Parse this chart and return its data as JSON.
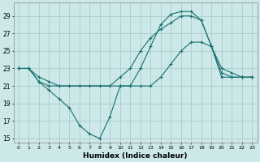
{
  "xlabel": "Humidex (Indice chaleur)",
  "bg_color": "#cce8e8",
  "grid_color": "#aacccc",
  "line_color": "#1a7070",
  "xlim": [
    -0.5,
    23.5
  ],
  "ylim": [
    14.5,
    30.5
  ],
  "xticks": [
    0,
    1,
    2,
    3,
    4,
    5,
    6,
    7,
    8,
    9,
    10,
    11,
    12,
    13,
    14,
    15,
    16,
    17,
    18,
    19,
    20,
    21,
    22,
    23
  ],
  "yticks": [
    15,
    17,
    19,
    21,
    23,
    25,
    27,
    29
  ],
  "line1_x": [
    0,
    1,
    2,
    3,
    4,
    5,
    6,
    7,
    8,
    9,
    10,
    11,
    12,
    13,
    14,
    15,
    16,
    17,
    18,
    19,
    20,
    21,
    22,
    23
  ],
  "line1_y": [
    23,
    23,
    21.5,
    20.5,
    19.5,
    18.5,
    16.5,
    15.5,
    15,
    17.5,
    21,
    21,
    23,
    25.5,
    28,
    29.2,
    29.5,
    29.5,
    28.5,
    25.5,
    23,
    22.5,
    22,
    22
  ],
  "line2_x": [
    0,
    1,
    2,
    3,
    4,
    5,
    6,
    7,
    8,
    9,
    10,
    11,
    12,
    13,
    14,
    15,
    16,
    17,
    18,
    19,
    20,
    21,
    22,
    23
  ],
  "line2_y": [
    23,
    23,
    22,
    21.5,
    21,
    21,
    21,
    21,
    21,
    21,
    22,
    23,
    25,
    26.5,
    27.5,
    28.2,
    29,
    29,
    28.5,
    25.5,
    22.5,
    22,
    22,
    22
  ],
  "line3_x": [
    0,
    1,
    2,
    3,
    10,
    11,
    12,
    13,
    14,
    15,
    16,
    17,
    18,
    19,
    20,
    21,
    22,
    23
  ],
  "line3_y": [
    23,
    23,
    21.5,
    21,
    21,
    21,
    21,
    21,
    22,
    23.5,
    25,
    26,
    26,
    25.5,
    22,
    22,
    22,
    22
  ]
}
